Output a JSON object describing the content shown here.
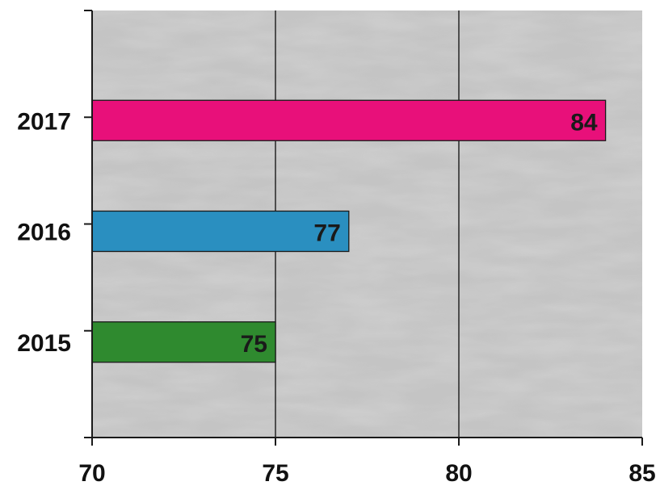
{
  "chart_data": {
    "type": "bar",
    "orientation": "horizontal",
    "categories": [
      "2017",
      "2016",
      "2015"
    ],
    "values": [
      84,
      77,
      75
    ],
    "data_labels": [
      "84",
      "77",
      "75"
    ],
    "bar_colors": [
      "#e8107a",
      "#2a8fc0",
      "#2f8a2f"
    ],
    "x_ticks": [
      "70",
      "75",
      "80",
      "85"
    ],
    "xlim": [
      70,
      85
    ],
    "grid": true,
    "title": "",
    "xlabel": "",
    "ylabel": "",
    "plot_background": "#c7c7c7"
  }
}
